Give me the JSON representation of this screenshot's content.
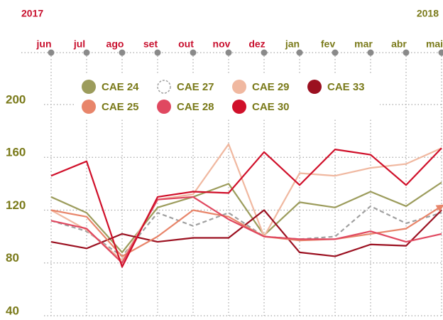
{
  "chart_data": {
    "type": "line",
    "year_labels": [
      {
        "label": "2017",
        "color": "#c8102e"
      },
      {
        "label": "2018",
        "color": "#7a7a1a"
      }
    ],
    "categories": [
      "jun",
      "jul",
      "ago",
      "set",
      "out",
      "nov",
      "dez",
      "jan",
      "fev",
      "mar",
      "abr",
      "mai"
    ],
    "category_colors": [
      "#c8102e",
      "#c8102e",
      "#c8102e",
      "#c8102e",
      "#c8102e",
      "#c8102e",
      "#c8102e",
      "#7a7a1a",
      "#7a7a1a",
      "#7a7a1a",
      "#7a7a1a",
      "#7a7a1a"
    ],
    "ylim": [
      40,
      200
    ],
    "yticks": [
      40,
      80,
      120,
      160,
      200
    ],
    "grid": true,
    "series": [
      {
        "name": "CAE 24",
        "color": "#9c9c5c",
        "values": [
          130,
          118,
          88,
          122,
          130,
          140,
          101,
          126,
          122,
          134,
          123,
          141
        ]
      },
      {
        "name": "CAE 27",
        "color": "#a0a0a0",
        "dashed": true,
        "values": [
          112,
          104,
          85,
          118,
          108,
          118,
          100,
          98,
          100,
          123,
          110,
          118
        ]
      },
      {
        "name": "CAE 29",
        "color": "#f0b8a0",
        "values": [
          120,
          105,
          82,
          128,
          132,
          170,
          100,
          148,
          146,
          152,
          155,
          167
        ]
      },
      {
        "name": "CAE 33",
        "color": "#9b1020",
        "values": [
          96,
          91,
          102,
          96,
          99,
          99,
          120,
          88,
          85,
          94,
          93,
          120
        ]
      },
      {
        "name": "CAE 25",
        "color": "#e8856a",
        "arrow": true,
        "values": [
          120,
          115,
          85,
          100,
          120,
          115,
          100,
          97,
          98,
          102,
          106,
          123
        ]
      },
      {
        "name": "CAE 28",
        "color": "#e04860",
        "values": [
          112,
          106,
          80,
          128,
          130,
          113,
          100,
          98,
          98,
          104,
          96,
          102
        ]
      },
      {
        "name": "CAE 30",
        "color": "#d0102a",
        "values": [
          146,
          157,
          77,
          130,
          134,
          133,
          164,
          139,
          166,
          162,
          139,
          167
        ]
      }
    ]
  }
}
